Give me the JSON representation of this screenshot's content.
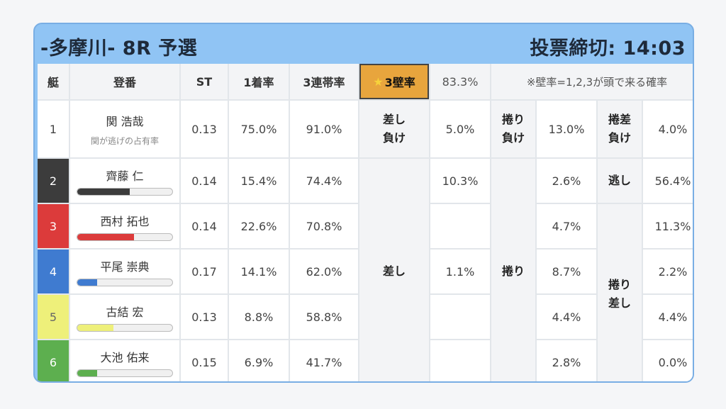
{
  "header": {
    "title": "-多摩川- 8R 予選",
    "deadline": "投票締切: 14:03"
  },
  "columns": {
    "lane": "艇",
    "name": "登番",
    "st": "ST",
    "first": "1着率",
    "top3": "3連帯率",
    "wall_star": "★",
    "wall": "3壁率",
    "wall_value": "83.3%",
    "note": "※壁率=1,2,3が頭で来る確率"
  },
  "row1": {
    "lane": "1",
    "name": "関 浩哉",
    "sub": "関が逃げの占有率",
    "st": "0.13",
    "first": "75.0%",
    "top3": "91.0%",
    "sashi_make_l1": "差し",
    "sashi_make_l2": "負け",
    "sashi_make_val": "5.0%",
    "makuri_make_l1": "捲り",
    "makuri_make_l2": "負け",
    "makuri_make_val": "13.0%",
    "makurisashi_make_l1": "捲差",
    "makurisashi_make_l2": "負け",
    "makurisashi_make_val": "4.0%"
  },
  "labels": {
    "sashi": "差し",
    "makuri": "捲り",
    "nige": "逃し",
    "makurisashi_l1": "捲り",
    "makurisashi_l2": "差し"
  },
  "racers": [
    {
      "lane": "2",
      "color": "#3c3c3c",
      "name": "齊藤 仁",
      "bar": 0.55,
      "st": "0.14",
      "first": "15.4%",
      "top3": "74.4%",
      "sashi": "10.3%",
      "makuri": "2.6%",
      "right": "56.4%"
    },
    {
      "lane": "3",
      "color": "#dc3b3b",
      "name": "西村 拓也",
      "bar": 0.6,
      "st": "0.14",
      "first": "22.6%",
      "top3": "70.8%",
      "sashi": "",
      "makuri": "4.7%",
      "right": "11.3%"
    },
    {
      "lane": "4",
      "color": "#3f7bd0",
      "name": "平尾 崇典",
      "bar": 0.21,
      "st": "0.17",
      "first": "14.1%",
      "top3": "62.0%",
      "sashi": "1.1%",
      "makuri": "8.7%",
      "right": "2.2%"
    },
    {
      "lane": "5",
      "color": "#eef07a",
      "name": "古結 宏",
      "bar": 0.38,
      "st": "0.13",
      "first": "8.8%",
      "top3": "58.8%",
      "sashi": "",
      "makuri": "4.4%",
      "right": "4.4%"
    },
    {
      "lane": "6",
      "color": "#5daf4f",
      "name": "大池 佑来",
      "bar": 0.21,
      "st": "0.15",
      "first": "6.9%",
      "top3": "41.7%",
      "sashi": "",
      "makuri": "2.8%",
      "right": "0.0%"
    }
  ]
}
